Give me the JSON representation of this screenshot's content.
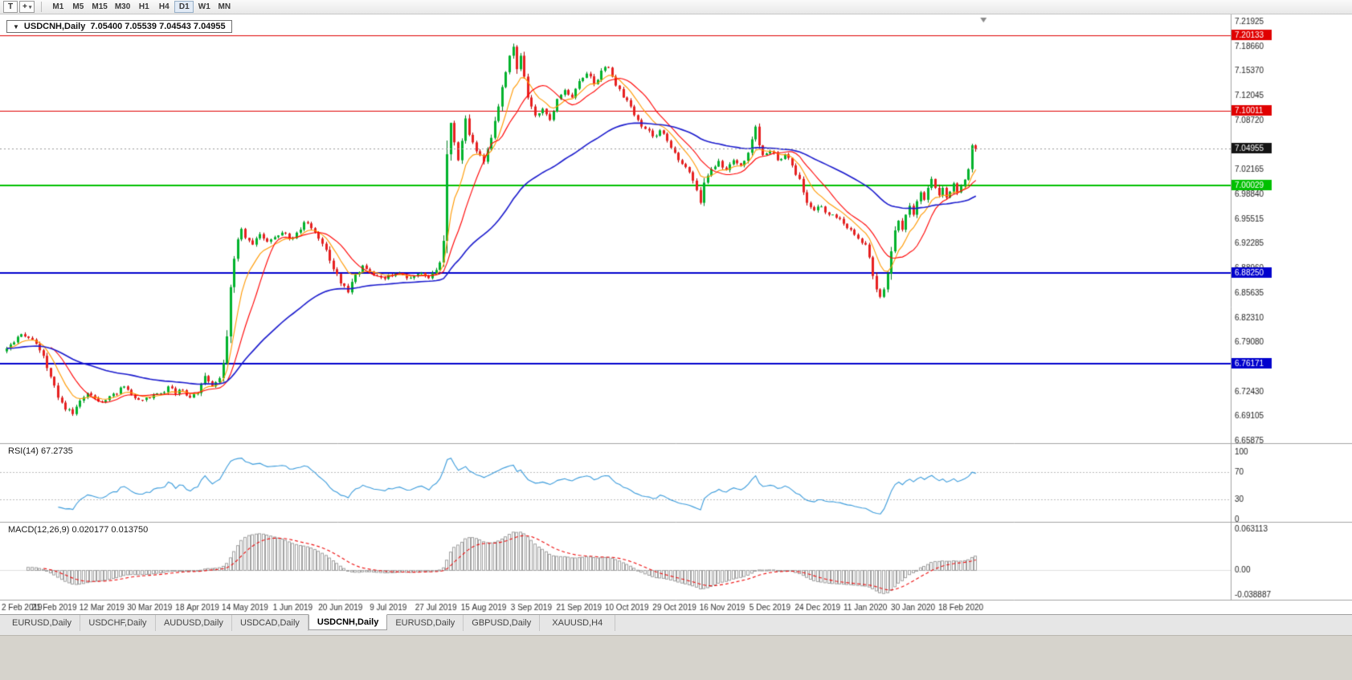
{
  "toolbar": {
    "text_tool_label": "T",
    "cursor_glyph": "+",
    "dropdown_glyph": "▾",
    "timeframes": [
      {
        "label": "M1",
        "active": false
      },
      {
        "label": "M5",
        "active": false
      },
      {
        "label": "M15",
        "active": false
      },
      {
        "label": "M30",
        "active": false
      },
      {
        "label": "H1",
        "active": false
      },
      {
        "label": "H4",
        "active": false
      },
      {
        "label": "D1",
        "active": true
      },
      {
        "label": "W1",
        "active": false
      },
      {
        "label": "MN",
        "active": false
      }
    ]
  },
  "chart": {
    "title": {
      "arrow_glyph": "▼",
      "text": "USDCNH,Daily  7.05400 7.05539 7.04543 7.04955"
    }
  },
  "rsi": {
    "title": "RSI(14) 67.2735",
    "period": 14,
    "value": 67.2735,
    "levels": [
      100,
      70,
      30,
      0
    ],
    "line_color": "#3c9cdc"
  },
  "macd": {
    "title": "MACD(12,26,9) 0.020177 0.013750",
    "params": [
      12,
      26,
      9
    ],
    "values": [
      0.020177,
      0.01375
    ],
    "axis_labels": [
      "0.063113",
      "0.00",
      "-0.038887"
    ],
    "histogram_color": "#a0a0a0",
    "signal_color": "#ee1111"
  },
  "tabs": [
    {
      "label": "EURUSD,Daily",
      "active": false
    },
    {
      "label": "USDCHF,Daily",
      "active": false
    },
    {
      "label": "AUDUSD,Daily",
      "active": false
    },
    {
      "label": "USDCAD,Daily",
      "active": false
    },
    {
      "label": "USDCNH,Daily",
      "active": true
    },
    {
      "label": "EURUSD,Daily",
      "active": false
    },
    {
      "label": "GBPUSD,Daily",
      "active": false
    },
    {
      "label": "XAUUSD,H4",
      "active": false
    }
  ],
  "chart_data": {
    "type": "candlestick",
    "symbol": "USDCNH",
    "timeframe": "Daily",
    "bar_count": 265,
    "bar_start_date": "2 Feb 2019",
    "bar_end_date": "18 Feb 2020",
    "price_axis": {
      "min": 6.655,
      "max": 7.225,
      "ticks": [
        "7.21925",
        "7.18660",
        "7.15370",
        "7.12045",
        "7.08720",
        "7.02165",
        "6.98840",
        "6.95515",
        "6.92285",
        "6.88960",
        "6.85635",
        "6.82310",
        "6.79080",
        "6.72430",
        "6.69105",
        "6.65875"
      ]
    },
    "date_ticks": [
      {
        "label": "2 Feb 2019",
        "bar": 0
      },
      {
        "label": "21 Feb 2019",
        "bar": 13
      },
      {
        "label": "12 Mar 2019",
        "bar": 26
      },
      {
        "label": "30 Mar 2019",
        "bar": 39
      },
      {
        "label": "18 Apr 2019",
        "bar": 52
      },
      {
        "label": "14 May 2019",
        "bar": 65
      },
      {
        "label": "1 Jun 2019",
        "bar": 78
      },
      {
        "label": "20 Jun 2019",
        "bar": 91
      },
      {
        "label": "9 Jul 2019",
        "bar": 104
      },
      {
        "label": "27 Jul 2019",
        "bar": 117
      },
      {
        "label": "15 Aug 2019",
        "bar": 130
      },
      {
        "label": "3 Sep 2019",
        "bar": 143
      },
      {
        "label": "21 Sep 2019",
        "bar": 156
      },
      {
        "label": "10 Oct 2019",
        "bar": 169
      },
      {
        "label": "29 Oct 2019",
        "bar": 182
      },
      {
        "label": "16 Nov 2019",
        "bar": 195
      },
      {
        "label": "5 Dec 2019",
        "bar": 208
      },
      {
        "label": "24 Dec 2019",
        "bar": 221
      },
      {
        "label": "11 Jan 2020",
        "bar": 234
      },
      {
        "label": "30 Jan 2020",
        "bar": 247
      },
      {
        "label": "18 Feb 2020",
        "bar": 260
      }
    ],
    "horizontal_lines": [
      {
        "price": 7.20133,
        "label": "7.20133",
        "color": "#e00000",
        "width": 1
      },
      {
        "price": 7.10011,
        "label": "7.10011",
        "color": "#e00000",
        "width": 1
      },
      {
        "price": 7.00029,
        "label": "7.00029",
        "color": "#00c000",
        "width": 2
      },
      {
        "price": 6.8825,
        "label": "6.88250",
        "color": "#0000cd",
        "width": 2
      },
      {
        "price": 6.76171,
        "label": "6.76171",
        "color": "#0000cd",
        "width": 2
      }
    ],
    "current_price": {
      "value": 7.04955,
      "label": "7.04955",
      "label_bg": "#141414"
    },
    "last_bar_ohlc": {
      "open": 7.054,
      "high": 7.05539,
      "low": 7.04543,
      "close": 7.04955
    },
    "candle_colors": {
      "up_fill": "#00b32c",
      "up_stroke": "#008021",
      "down_fill": "#e82020",
      "down_stroke": "#b00000"
    },
    "moving_averages": [
      {
        "name": "fast",
        "type": "ema",
        "period": 8,
        "color": "#ff9900"
      },
      {
        "name": "mid",
        "type": "sma",
        "period": 13,
        "color": "#ff0000"
      },
      {
        "name": "slow",
        "type": "ema",
        "period": 55,
        "color": "#1a1acd"
      }
    ],
    "price_anchors": [
      [
        0,
        6.782
      ],
      [
        2,
        6.79
      ],
      [
        4,
        6.801
      ],
      [
        6,
        6.796
      ],
      [
        8,
        6.788
      ],
      [
        10,
        6.772
      ],
      [
        12,
        6.744
      ],
      [
        14,
        6.716
      ],
      [
        16,
        6.7
      ],
      [
        18,
        6.694
      ],
      [
        20,
        6.712
      ],
      [
        22,
        6.722
      ],
      [
        24,
        6.715
      ],
      [
        26,
        6.71
      ],
      [
        28,
        6.718
      ],
      [
        30,
        6.721
      ],
      [
        32,
        6.731
      ],
      [
        34,
        6.72
      ],
      [
        36,
        6.713
      ],
      [
        38,
        6.716
      ],
      [
        40,
        6.72
      ],
      [
        42,
        6.722
      ],
      [
        44,
        6.731
      ],
      [
        46,
        6.721
      ],
      [
        48,
        6.726
      ],
      [
        50,
        6.716
      ],
      [
        52,
        6.722
      ],
      [
        54,
        6.745
      ],
      [
        56,
        6.731
      ],
      [
        58,
        6.742
      ],
      [
        59,
        6.762
      ],
      [
        60,
        6.798
      ],
      [
        61,
        6.864
      ],
      [
        62,
        6.902
      ],
      [
        63,
        6.928
      ],
      [
        64,
        6.942
      ],
      [
        65,
        6.93
      ],
      [
        67,
        6.921
      ],
      [
        69,
        6.935
      ],
      [
        71,
        6.925
      ],
      [
        73,
        6.931
      ],
      [
        75,
        6.937
      ],
      [
        77,
        6.929
      ],
      [
        79,
        6.937
      ],
      [
        81,
        6.951
      ],
      [
        83,
        6.943
      ],
      [
        85,
        6.929
      ],
      [
        87,
        6.914
      ],
      [
        89,
        6.888
      ],
      [
        91,
        6.869
      ],
      [
        93,
        6.857
      ],
      [
        95,
        6.881
      ],
      [
        97,
        6.893
      ],
      [
        99,
        6.885
      ],
      [
        101,
        6.879
      ],
      [
        103,
        6.875
      ],
      [
        105,
        6.879
      ],
      [
        107,
        6.883
      ],
      [
        109,
        6.876
      ],
      [
        111,
        6.879
      ],
      [
        113,
        6.883
      ],
      [
        115,
        6.876
      ],
      [
        117,
        6.887
      ],
      [
        118,
        6.897
      ],
      [
        119,
        6.926
      ],
      [
        120,
        7.042
      ],
      [
        121,
        7.084
      ],
      [
        122,
        7.058
      ],
      [
        123,
        7.034
      ],
      [
        124,
        7.06
      ],
      [
        125,
        7.09
      ],
      [
        126,
        7.068
      ],
      [
        128,
        7.046
      ],
      [
        130,
        7.032
      ],
      [
        132,
        7.064
      ],
      [
        134,
        7.106
      ],
      [
        135,
        7.132
      ],
      [
        136,
        7.152
      ],
      [
        137,
        7.174
      ],
      [
        138,
        7.186
      ],
      [
        139,
        7.156
      ],
      [
        140,
        7.174
      ],
      [
        141,
        7.146
      ],
      [
        142,
        7.118
      ],
      [
        143,
        7.106
      ],
      [
        144,
        7.094
      ],
      [
        146,
        7.103
      ],
      [
        148,
        7.088
      ],
      [
        150,
        7.116
      ],
      [
        152,
        7.128
      ],
      [
        154,
        7.118
      ],
      [
        156,
        7.14
      ],
      [
        158,
        7.15
      ],
      [
        160,
        7.136
      ],
      [
        162,
        7.154
      ],
      [
        164,
        7.158
      ],
      [
        166,
        7.134
      ],
      [
        168,
        7.118
      ],
      [
        170,
        7.106
      ],
      [
        172,
        7.088
      ],
      [
        174,
        7.076
      ],
      [
        176,
        7.066
      ],
      [
        178,
        7.074
      ],
      [
        180,
        7.06
      ],
      [
        182,
        7.044
      ],
      [
        184,
        7.029
      ],
      [
        186,
        7.018
      ],
      [
        188,
        6.994
      ],
      [
        189,
        6.977
      ],
      [
        190,
        7.004
      ],
      [
        192,
        7.022
      ],
      [
        194,
        7.033
      ],
      [
        196,
        7.021
      ],
      [
        198,
        7.034
      ],
      [
        200,
        7.027
      ],
      [
        202,
        7.044
      ],
      [
        203,
        7.062
      ],
      [
        204,
        7.079
      ],
      [
        205,
        7.054
      ],
      [
        206,
        7.041
      ],
      [
        208,
        7.046
      ],
      [
        210,
        7.034
      ],
      [
        212,
        7.042
      ],
      [
        214,
        7.027
      ],
      [
        216,
        7.009
      ],
      [
        217,
        6.991
      ],
      [
        218,
        6.977
      ],
      [
        220,
        6.967
      ],
      [
        222,
        6.972
      ],
      [
        224,
        6.961
      ],
      [
        226,
        6.957
      ],
      [
        228,
        6.949
      ],
      [
        230,
        6.941
      ],
      [
        232,
        6.929
      ],
      [
        234,
        6.921
      ],
      [
        235,
        6.904
      ],
      [
        236,
        6.879
      ],
      [
        237,
        6.861
      ],
      [
        238,
        6.851
      ],
      [
        239,
        6.861
      ],
      [
        240,
        6.882
      ],
      [
        241,
        6.912
      ],
      [
        242,
        6.94
      ],
      [
        243,
        6.953
      ],
      [
        244,
        6.941
      ],
      [
        245,
        6.961
      ],
      [
        246,
        6.973
      ],
      [
        247,
        6.961
      ],
      [
        248,
        6.979
      ],
      [
        249,
        6.991
      ],
      [
        250,
        6.981
      ],
      [
        251,
        6.997
      ],
      [
        252,
        7.009
      ],
      [
        253,
        6.997
      ],
      [
        254,
        6.987
      ],
      [
        255,
        6.997
      ],
      [
        256,
        6.984
      ],
      [
        257,
        6.992
      ],
      [
        258,
        7.003
      ],
      [
        259,
        6.991
      ],
      [
        260,
        6.999
      ],
      [
        261,
        7.008
      ],
      [
        262,
        7.022
      ],
      [
        263,
        7.054
      ],
      [
        264,
        7.04955
      ]
    ]
  }
}
